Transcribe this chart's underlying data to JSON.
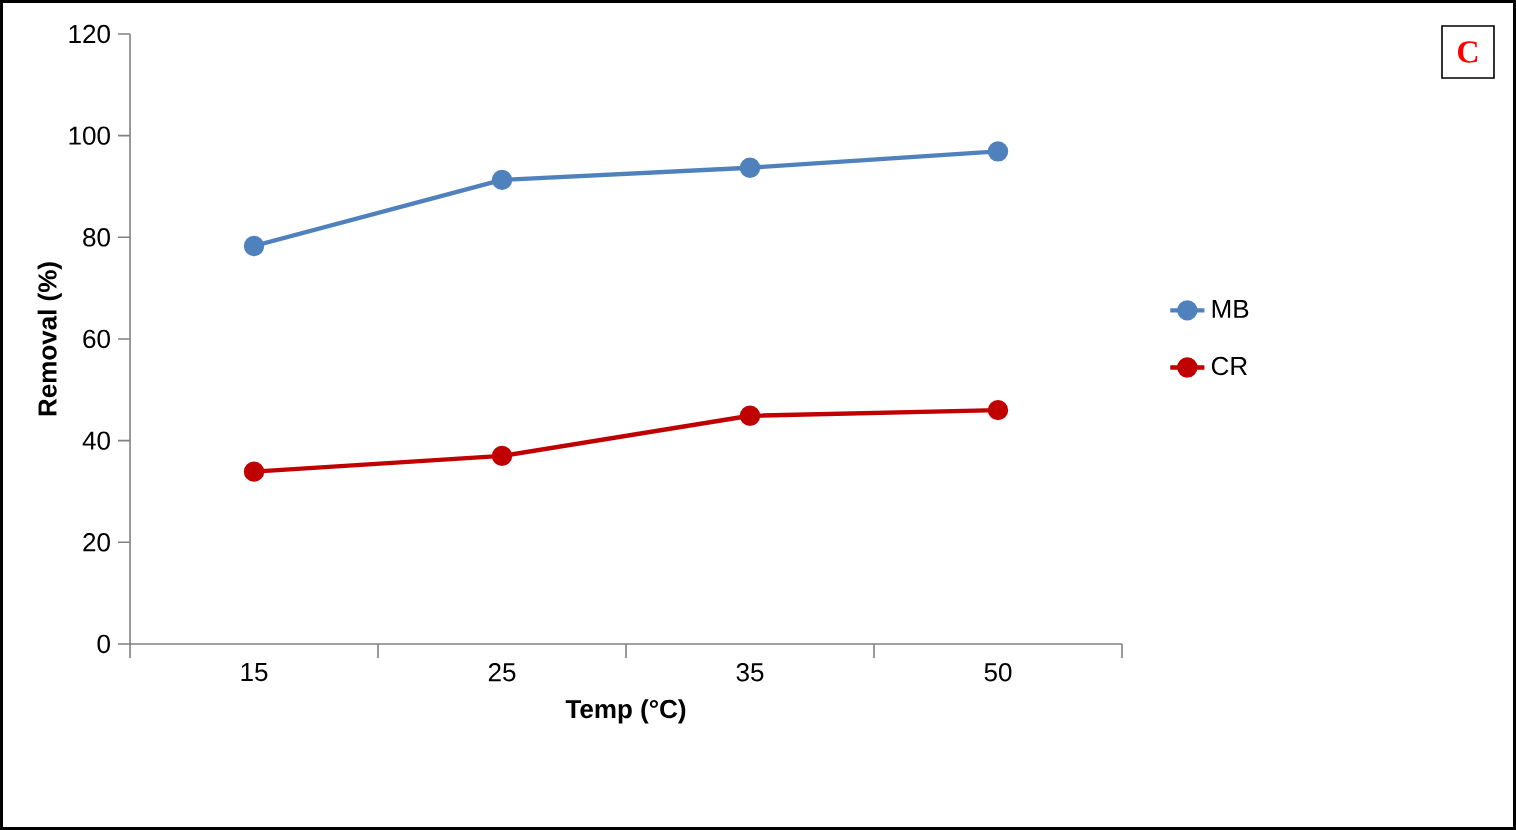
{
  "chart_data": {
    "type": "line",
    "xlabel": "Temp (°C)",
    "ylabel": "Removal (%)",
    "annotations": [
      "C"
    ],
    "categories": [
      "15",
      "25",
      "35",
      "50"
    ],
    "series": [
      {
        "name": "MB",
        "color": "#4f81bd",
        "values": [
          78.3,
          91.3,
          93.7,
          96.9
        ]
      },
      {
        "name": "CR",
        "color": "#c00000",
        "values": [
          33.9,
          37,
          44.9,
          46
        ]
      }
    ],
    "ylim": [
      0,
      120
    ],
    "yticks": [
      0,
      20,
      40,
      60,
      80,
      100,
      120
    ],
    "grid": false,
    "legend": "right",
    "marker": "circle",
    "line_style": "solid"
  }
}
